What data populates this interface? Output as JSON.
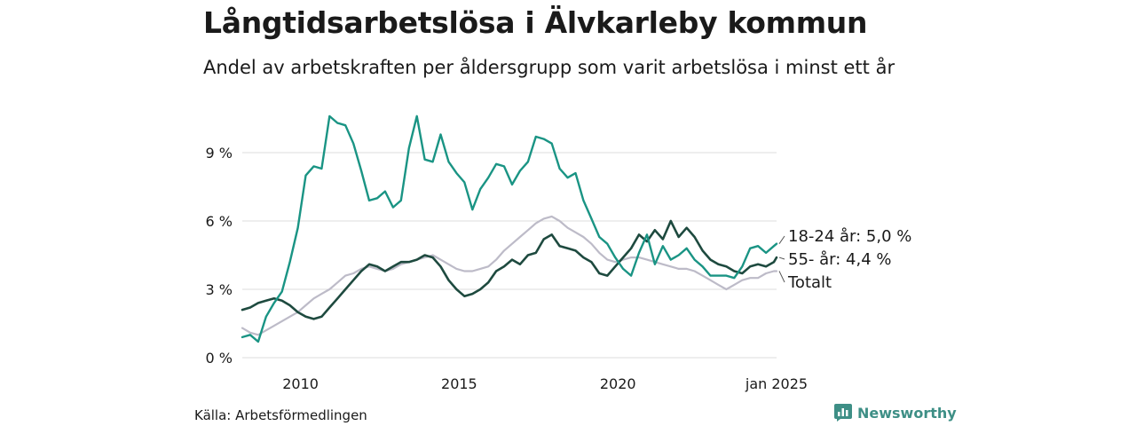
{
  "header": {
    "title": "Långtidsarbetslösa i Älvkarleby kommun",
    "subtitle": "Andel av arbetskraften per åldersgrupp som varit arbetslösa i minst ett år"
  },
  "footer": {
    "source": "Källa: Arbetsförmedlingen",
    "brand": "Newsworthy",
    "brand_icon": "bar-chart-icon"
  },
  "colors": {
    "age_18_24": "#1a9484",
    "age_55_plus": "#1e4a3f",
    "total": "#bdbbc8",
    "grid": "#dcdcdc",
    "brand": "#3e8f86"
  },
  "chart_data": {
    "type": "line",
    "title": "Långtidsarbetslösa i Älvkarleby kommun",
    "subtitle": "Andel av arbetskraften per åldersgrupp som varit arbetslösa i minst ett år",
    "xlabel": "",
    "ylabel": "",
    "xlim": [
      "2008-03",
      "2025-01"
    ],
    "ylim": [
      0,
      10
    ],
    "yticks": [
      0,
      3,
      6,
      9
    ],
    "ytick_labels": [
      "0 %",
      "3 %",
      "6 %",
      "9 %"
    ],
    "xtick_labels": [
      "2010",
      "2015",
      "2020",
      "jan 2025"
    ],
    "xtick_dates": [
      "2010-01",
      "2015-01",
      "2020-01",
      "2025-01"
    ],
    "grid": true,
    "legend": "end-of-line labels (right)",
    "series": [
      {
        "name": "Totalt",
        "label": "Totalt",
        "points": [
          [
            "2008-03",
            1.3
          ],
          [
            "2008-06",
            1.1
          ],
          [
            "2008-09",
            1.0
          ],
          [
            "2008-12",
            1.2
          ],
          [
            "2009-03",
            1.4
          ],
          [
            "2009-06",
            1.6
          ],
          [
            "2009-09",
            1.8
          ],
          [
            "2009-12",
            2.0
          ],
          [
            "2010-03",
            2.3
          ],
          [
            "2010-06",
            2.6
          ],
          [
            "2010-09",
            2.8
          ],
          [
            "2010-12",
            3.0
          ],
          [
            "2011-03",
            3.3
          ],
          [
            "2011-06",
            3.6
          ],
          [
            "2011-09",
            3.7
          ],
          [
            "2011-12",
            3.9
          ],
          [
            "2012-03",
            4.0
          ],
          [
            "2012-06",
            3.9
          ],
          [
            "2012-09",
            3.8
          ],
          [
            "2012-12",
            3.9
          ],
          [
            "2013-03",
            4.1
          ],
          [
            "2013-06",
            4.2
          ],
          [
            "2013-09",
            4.3
          ],
          [
            "2013-12",
            4.4
          ],
          [
            "2014-03",
            4.5
          ],
          [
            "2014-06",
            4.3
          ],
          [
            "2014-09",
            4.1
          ],
          [
            "2014-12",
            3.9
          ],
          [
            "2015-03",
            3.8
          ],
          [
            "2015-06",
            3.8
          ],
          [
            "2015-09",
            3.9
          ],
          [
            "2015-12",
            4.0
          ],
          [
            "2016-03",
            4.3
          ],
          [
            "2016-06",
            4.7
          ],
          [
            "2016-09",
            5.0
          ],
          [
            "2016-12",
            5.3
          ],
          [
            "2017-03",
            5.6
          ],
          [
            "2017-06",
            5.9
          ],
          [
            "2017-09",
            6.1
          ],
          [
            "2017-12",
            6.2
          ],
          [
            "2018-03",
            6.0
          ],
          [
            "2018-06",
            5.7
          ],
          [
            "2018-09",
            5.5
          ],
          [
            "2018-12",
            5.3
          ],
          [
            "2019-03",
            5.0
          ],
          [
            "2019-06",
            4.6
          ],
          [
            "2019-09",
            4.3
          ],
          [
            "2019-12",
            4.2
          ],
          [
            "2020-03",
            4.3
          ],
          [
            "2020-06",
            4.4
          ],
          [
            "2020-09",
            4.4
          ],
          [
            "2020-12",
            4.3
          ],
          [
            "2021-03",
            4.2
          ],
          [
            "2021-06",
            4.1
          ],
          [
            "2021-09",
            4.0
          ],
          [
            "2021-12",
            3.9
          ],
          [
            "2022-03",
            3.9
          ],
          [
            "2022-06",
            3.8
          ],
          [
            "2022-09",
            3.6
          ],
          [
            "2022-12",
            3.4
          ],
          [
            "2023-03",
            3.2
          ],
          [
            "2023-06",
            3.0
          ],
          [
            "2023-09",
            3.2
          ],
          [
            "2023-12",
            3.4
          ],
          [
            "2024-03",
            3.5
          ],
          [
            "2024-06",
            3.5
          ],
          [
            "2024-09",
            3.7
          ],
          [
            "2024-12",
            3.8
          ],
          [
            "2025-01",
            3.8
          ]
        ]
      },
      {
        "name": "55- år",
        "label": "55- år: 4,4 %",
        "points": [
          [
            "2008-03",
            2.1
          ],
          [
            "2008-06",
            2.2
          ],
          [
            "2008-09",
            2.4
          ],
          [
            "2008-12",
            2.5
          ],
          [
            "2009-03",
            2.6
          ],
          [
            "2009-06",
            2.5
          ],
          [
            "2009-09",
            2.3
          ],
          [
            "2009-12",
            2.0
          ],
          [
            "2010-03",
            1.8
          ],
          [
            "2010-06",
            1.7
          ],
          [
            "2010-09",
            1.8
          ],
          [
            "2010-12",
            2.2
          ],
          [
            "2011-03",
            2.6
          ],
          [
            "2011-06",
            3.0
          ],
          [
            "2011-09",
            3.4
          ],
          [
            "2011-12",
            3.8
          ],
          [
            "2012-03",
            4.1
          ],
          [
            "2012-06",
            4.0
          ],
          [
            "2012-09",
            3.8
          ],
          [
            "2012-12",
            4.0
          ],
          [
            "2013-03",
            4.2
          ],
          [
            "2013-06",
            4.2
          ],
          [
            "2013-09",
            4.3
          ],
          [
            "2013-12",
            4.5
          ],
          [
            "2014-03",
            4.4
          ],
          [
            "2014-06",
            4.0
          ],
          [
            "2014-09",
            3.4
          ],
          [
            "2014-12",
            3.0
          ],
          [
            "2015-03",
            2.7
          ],
          [
            "2015-06",
            2.8
          ],
          [
            "2015-09",
            3.0
          ],
          [
            "2015-12",
            3.3
          ],
          [
            "2016-03",
            3.8
          ],
          [
            "2016-06",
            4.0
          ],
          [
            "2016-09",
            4.3
          ],
          [
            "2016-12",
            4.1
          ],
          [
            "2017-03",
            4.5
          ],
          [
            "2017-06",
            4.6
          ],
          [
            "2017-09",
            5.2
          ],
          [
            "2017-12",
            5.4
          ],
          [
            "2018-03",
            4.9
          ],
          [
            "2018-06",
            4.8
          ],
          [
            "2018-09",
            4.7
          ],
          [
            "2018-12",
            4.4
          ],
          [
            "2019-03",
            4.2
          ],
          [
            "2019-06",
            3.7
          ],
          [
            "2019-09",
            3.6
          ],
          [
            "2019-12",
            4.0
          ],
          [
            "2020-03",
            4.4
          ],
          [
            "2020-06",
            4.8
          ],
          [
            "2020-09",
            5.4
          ],
          [
            "2020-12",
            5.1
          ],
          [
            "2021-03",
            5.6
          ],
          [
            "2021-06",
            5.2
          ],
          [
            "2021-09",
            6.0
          ],
          [
            "2021-12",
            5.3
          ],
          [
            "2022-03",
            5.7
          ],
          [
            "2022-06",
            5.3
          ],
          [
            "2022-09",
            4.7
          ],
          [
            "2022-12",
            4.3
          ],
          [
            "2023-03",
            4.1
          ],
          [
            "2023-06",
            4.0
          ],
          [
            "2023-09",
            3.8
          ],
          [
            "2023-12",
            3.7
          ],
          [
            "2024-03",
            4.0
          ],
          [
            "2024-06",
            4.1
          ],
          [
            "2024-09",
            4.0
          ],
          [
            "2024-12",
            4.2
          ],
          [
            "2025-01",
            4.4
          ]
        ]
      },
      {
        "name": "18-24 år",
        "label": "18-24 år: 5,0 %",
        "points": [
          [
            "2008-03",
            0.9
          ],
          [
            "2008-06",
            1.0
          ],
          [
            "2008-09",
            0.7
          ],
          [
            "2008-12",
            1.8
          ],
          [
            "2009-03",
            2.4
          ],
          [
            "2009-06",
            2.9
          ],
          [
            "2009-09",
            4.2
          ],
          [
            "2009-12",
            5.7
          ],
          [
            "2010-03",
            8.0
          ],
          [
            "2010-06",
            8.4
          ],
          [
            "2010-09",
            8.3
          ],
          [
            "2010-12",
            10.6
          ],
          [
            "2011-03",
            10.3
          ],
          [
            "2011-06",
            10.2
          ],
          [
            "2011-09",
            9.4
          ],
          [
            "2011-12",
            8.2
          ],
          [
            "2012-03",
            6.9
          ],
          [
            "2012-06",
            7.0
          ],
          [
            "2012-09",
            7.3
          ],
          [
            "2012-12",
            6.6
          ],
          [
            "2013-03",
            6.9
          ],
          [
            "2013-06",
            9.2
          ],
          [
            "2013-09",
            10.6
          ],
          [
            "2013-12",
            8.7
          ],
          [
            "2014-03",
            8.6
          ],
          [
            "2014-06",
            9.8
          ],
          [
            "2014-09",
            8.6
          ],
          [
            "2014-12",
            8.1
          ],
          [
            "2015-03",
            7.7
          ],
          [
            "2015-06",
            6.5
          ],
          [
            "2015-09",
            7.4
          ],
          [
            "2015-12",
            7.9
          ],
          [
            "2016-03",
            8.5
          ],
          [
            "2016-06",
            8.4
          ],
          [
            "2016-09",
            7.6
          ],
          [
            "2016-12",
            8.2
          ],
          [
            "2017-03",
            8.6
          ],
          [
            "2017-06",
            9.7
          ],
          [
            "2017-09",
            9.6
          ],
          [
            "2017-12",
            9.4
          ],
          [
            "2018-03",
            8.3
          ],
          [
            "2018-06",
            7.9
          ],
          [
            "2018-09",
            8.1
          ],
          [
            "2018-12",
            6.9
          ],
          [
            "2019-03",
            6.1
          ],
          [
            "2019-06",
            5.3
          ],
          [
            "2019-09",
            5.0
          ],
          [
            "2019-12",
            4.4
          ],
          [
            "2020-03",
            3.9
          ],
          [
            "2020-06",
            3.6
          ],
          [
            "2020-09",
            4.6
          ],
          [
            "2020-12",
            5.4
          ],
          [
            "2021-03",
            4.1
          ],
          [
            "2021-06",
            4.9
          ],
          [
            "2021-09",
            4.3
          ],
          [
            "2021-12",
            4.5
          ],
          [
            "2022-03",
            4.8
          ],
          [
            "2022-06",
            4.3
          ],
          [
            "2022-09",
            4.0
          ],
          [
            "2022-12",
            3.6
          ],
          [
            "2023-03",
            3.6
          ],
          [
            "2023-06",
            3.6
          ],
          [
            "2023-09",
            3.5
          ],
          [
            "2023-12",
            4.0
          ],
          [
            "2024-03",
            4.8
          ],
          [
            "2024-06",
            4.9
          ],
          [
            "2024-09",
            4.6
          ],
          [
            "2024-12",
            4.9
          ],
          [
            "2025-01",
            5.0
          ]
        ]
      }
    ]
  }
}
